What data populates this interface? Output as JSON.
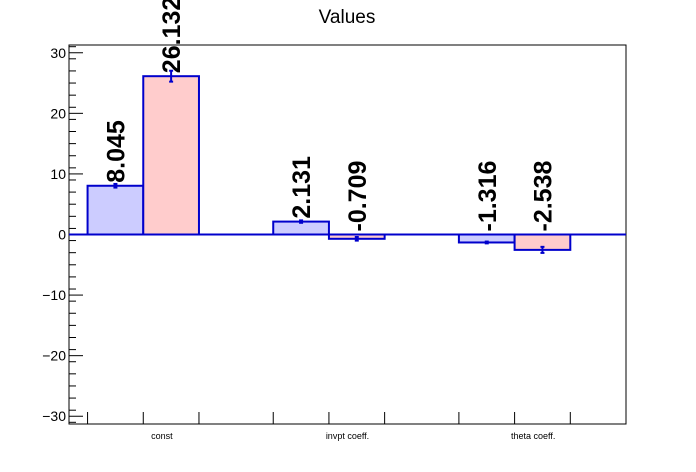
{
  "chart_data": {
    "type": "bar",
    "title": "Values",
    "categories": [
      "const",
      "invpt coeff.",
      "theta coeff."
    ],
    "series": [
      {
        "values": [
          8.045,
          2.131,
          -1.316
        ],
        "errors": [
          0.3,
          0.2,
          0.15
        ],
        "color": "#ccccff"
      },
      {
        "values": [
          26.132,
          -0.709,
          -2.538
        ],
        "errors": [
          0.9,
          0.3,
          0.5
        ],
        "color": "#ffcccc"
      }
    ],
    "data_labels": [
      [
        "8.045",
        "2.131",
        "-1.316"
      ],
      [
        "26.132",
        "-0.709",
        "-2.538"
      ]
    ],
    "ylim": [
      -31.28,
      31.28
    ],
    "yticks": [
      -30,
      -20,
      -10,
      0,
      10,
      20,
      30
    ],
    "ytick_labels": [
      "−30",
      "−20",
      "−10",
      "0",
      "10",
      "20",
      "30"
    ],
    "xlabel": "",
    "ylabel": "",
    "grid": false,
    "legend": "none",
    "axis_color": "#000000",
    "bar_edge_color": "#0000cc",
    "zero_line_color": "#0000cc"
  }
}
